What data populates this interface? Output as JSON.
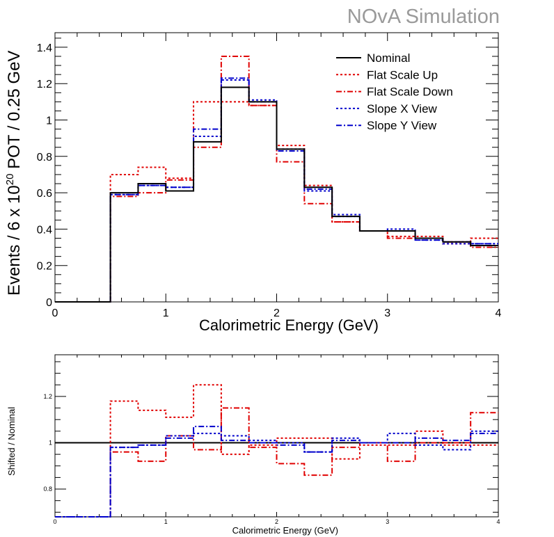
{
  "title": "NOvA Simulation",
  "colors": {
    "nominal": "#000000",
    "red": "#e00000",
    "blue": "#0000cc",
    "title": "#9a9a9a"
  },
  "chart_data": [
    {
      "type": "line",
      "style": "step histogram",
      "xlabel": "Calorimetric Energy (GeV)",
      "ylabel_parts": [
        "Events / 6 x 10",
        "20",
        " POT / 0.25 GeV"
      ],
      "xlim": [
        0,
        4
      ],
      "ylim": [
        0,
        1.48
      ],
      "xticks": [
        "0",
        "1",
        "2",
        "3",
        "4"
      ],
      "yticks": [
        "0",
        "0.2",
        "0.4",
        "0.6",
        "0.8",
        "1",
        "1.2",
        "1.4"
      ],
      "bin_edges": [
        0,
        0.25,
        0.5,
        0.75,
        1.0,
        1.25,
        1.5,
        1.75,
        2.0,
        2.25,
        2.5,
        2.75,
        3.0,
        3.25,
        3.5,
        3.75,
        4.0
      ],
      "legend_position": "top-right",
      "series": [
        {
          "name": "Nominal",
          "color": "#000000",
          "dash": "solid",
          "values": [
            0,
            0,
            0.6,
            0.65,
            0.61,
            0.88,
            1.18,
            1.1,
            0.84,
            0.63,
            0.47,
            0.39,
            0.39,
            0.35,
            0.33,
            0.31
          ]
        },
        {
          "name": "Flat Scale Up",
          "color": "#e00000",
          "dash": "dot",
          "values": [
            0,
            0,
            0.7,
            0.74,
            0.68,
            1.1,
            1.1,
            1.08,
            0.86,
            0.64,
            0.44,
            0.39,
            0.36,
            0.36,
            0.32,
            0.35
          ]
        },
        {
          "name": "Flat Scale Down",
          "color": "#e00000",
          "dash": "dashdot",
          "values": [
            0,
            0,
            0.58,
            0.6,
            0.67,
            0.85,
            1.35,
            1.08,
            0.77,
            0.54,
            0.44,
            0.39,
            0.35,
            0.35,
            0.33,
            0.3
          ]
        },
        {
          "name": "Slope X View",
          "color": "#0000cc",
          "dash": "dot",
          "values": [
            0,
            0,
            0.59,
            0.64,
            0.63,
            0.91,
            1.22,
            1.11,
            0.84,
            0.61,
            0.48,
            0.39,
            0.4,
            0.34,
            0.32,
            0.32
          ]
        },
        {
          "name": "Slope Y View",
          "color": "#0000cc",
          "dash": "dashdot",
          "values": [
            0,
            0,
            0.59,
            0.64,
            0.63,
            0.95,
            1.23,
            1.1,
            0.83,
            0.62,
            0.47,
            0.39,
            0.39,
            0.34,
            0.33,
            0.32
          ]
        }
      ]
    },
    {
      "type": "line",
      "style": "step histogram ratio",
      "xlabel": "Calorimetric Energy (GeV)",
      "ylabel": "Shifted / Nominal",
      "xlim": [
        0,
        4
      ],
      "ylim": [
        0.68,
        1.38
      ],
      "xticks": [
        "0",
        "1",
        "2",
        "3",
        "4"
      ],
      "yticks": [
        "0.8",
        "1",
        "1.2"
      ],
      "reference_line": 1.0,
      "bin_edges": [
        0,
        0.25,
        0.5,
        0.75,
        1.0,
        1.25,
        1.5,
        1.75,
        2.0,
        2.25,
        2.5,
        2.75,
        3.0,
        3.25,
        3.5,
        3.75,
        4.0
      ],
      "series": [
        {
          "name": "Flat Scale Up",
          "color": "#e00000",
          "dash": "dot",
          "values": [
            0.68,
            0.68,
            1.18,
            1.14,
            1.11,
            1.25,
            0.95,
            0.99,
            1.02,
            1.02,
            0.93,
            0.99,
            0.99,
            1.05,
            0.99,
            0.99
          ]
        },
        {
          "name": "Flat Scale Down",
          "color": "#e00000",
          "dash": "dashdot",
          "values": [
            0.68,
            0.68,
            0.96,
            0.92,
            1.03,
            0.97,
            1.15,
            0.98,
            0.91,
            0.86,
            0.98,
            1.0,
            0.92,
            1.0,
            1.0,
            1.13
          ]
        },
        {
          "name": "Slope X View",
          "color": "#0000cc",
          "dash": "dot",
          "values": [
            0.68,
            0.68,
            0.98,
            0.99,
            1.03,
            1.04,
            1.03,
            1.01,
            1.0,
            0.96,
            1.02,
            1.0,
            1.04,
            0.99,
            0.97,
            1.05
          ]
        },
        {
          "name": "Slope Y View",
          "color": "#0000cc",
          "dash": "dashdot",
          "values": [
            0.68,
            0.68,
            0.98,
            0.99,
            1.02,
            1.07,
            1.01,
            1.0,
            0.99,
            0.96,
            1.01,
            1.0,
            1.0,
            1.02,
            1.01,
            1.04
          ]
        }
      ]
    }
  ]
}
